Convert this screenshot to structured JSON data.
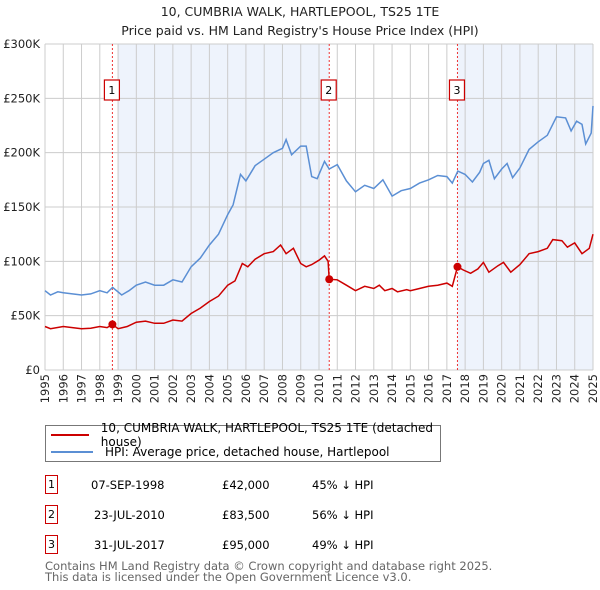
{
  "chart_data": {
    "type": "line",
    "title": "10, CUMBRIA WALK, HARTLEPOOL, TS25 1TE",
    "subtitle": "Price paid vs. HM Land Registry's House Price Index (HPI)",
    "xlim": [
      1995,
      2025
    ],
    "ylim": [
      0,
      300000
    ],
    "yticks": [
      {
        "v": 0,
        "label": "£0"
      },
      {
        "v": 50000,
        "label": "£50K"
      },
      {
        "v": 100000,
        "label": "£100K"
      },
      {
        "v": 150000,
        "label": "£150K"
      },
      {
        "v": 200000,
        "label": "£200K"
      },
      {
        "v": 250000,
        "label": "£250K"
      },
      {
        "v": 300000,
        "label": "£300K"
      }
    ],
    "xticks": [
      "1995",
      "1996",
      "1997",
      "1998",
      "1999",
      "2000",
      "2001",
      "2002",
      "2003",
      "2004",
      "2005",
      "2006",
      "2007",
      "2008",
      "2009",
      "2010",
      "2011",
      "2012",
      "2013",
      "2014",
      "2015",
      "2016",
      "2017",
      "2018",
      "2019",
      "2020",
      "2021",
      "2022",
      "2023",
      "2024",
      "2025"
    ],
    "grid": true,
    "colors": {
      "property": "#cc0000",
      "hpi": "#5b8fd4",
      "shade": "#eef3fc"
    },
    "series": [
      {
        "name": "10, CUMBRIA WALK, HARTLEPOOL, TS25 1TE (detached house)",
        "key": "property",
        "points": [
          [
            1995,
            40
          ],
          [
            1995.3,
            38
          ],
          [
            1996,
            40
          ],
          [
            1996.5,
            39
          ],
          [
            1997,
            38
          ],
          [
            1997.5,
            38.5
          ],
          [
            1998,
            40
          ],
          [
            1998.4,
            39
          ],
          [
            1998.69,
            42
          ],
          [
            1999,
            38
          ],
          [
            1999.5,
            40
          ],
          [
            2000,
            44
          ],
          [
            2000.5,
            45
          ],
          [
            2001,
            43
          ],
          [
            2001.5,
            43
          ],
          [
            2002,
            46
          ],
          [
            2002.5,
            45
          ],
          [
            2003,
            52
          ],
          [
            2003.5,
            57
          ],
          [
            2004,
            63
          ],
          [
            2004.5,
            68
          ],
          [
            2005,
            78
          ],
          [
            2005.4,
            82
          ],
          [
            2005.8,
            98
          ],
          [
            2006.1,
            95
          ],
          [
            2006.5,
            102
          ],
          [
            2007,
            107
          ],
          [
            2007.5,
            109
          ],
          [
            2007.9,
            115
          ],
          [
            2008.2,
            107
          ],
          [
            2008.6,
            112
          ],
          [
            2009,
            98
          ],
          [
            2009.3,
            95
          ],
          [
            2009.6,
            97
          ],
          [
            2010,
            101
          ],
          [
            2010.3,
            105
          ],
          [
            2010.5,
            100
          ],
          [
            2010.56,
            83.5
          ],
          [
            2011,
            83
          ],
          [
            2011.5,
            78
          ],
          [
            2012,
            73
          ],
          [
            2012.5,
            77
          ],
          [
            2013,
            75
          ],
          [
            2013.3,
            78
          ],
          [
            2013.6,
            73
          ],
          [
            2014,
            75
          ],
          [
            2014.3,
            72
          ],
          [
            2014.8,
            74
          ],
          [
            2015,
            73
          ],
          [
            2015.5,
            75
          ],
          [
            2016,
            77
          ],
          [
            2016.5,
            78
          ],
          [
            2017,
            80
          ],
          [
            2017.3,
            77
          ],
          [
            2017.58,
            95
          ],
          [
            2017.9,
            92
          ],
          [
            2018.3,
            89
          ],
          [
            2018.7,
            93
          ],
          [
            2019,
            99
          ],
          [
            2019.3,
            90
          ],
          [
            2019.8,
            96
          ],
          [
            2020.1,
            99
          ],
          [
            2020.5,
            90
          ],
          [
            2021,
            97
          ],
          [
            2021.5,
            107
          ],
          [
            2022,
            109
          ],
          [
            2022.5,
            112
          ],
          [
            2022.8,
            120
          ],
          [
            2023.3,
            119
          ],
          [
            2023.6,
            113
          ],
          [
            2024,
            117
          ],
          [
            2024.4,
            107
          ],
          [
            2024.8,
            112
          ],
          [
            2025,
            125
          ]
        ]
      },
      {
        "name": "HPI: Average price, detached house, Hartlepool",
        "key": "hpi",
        "points": [
          [
            1995,
            73
          ],
          [
            1995.3,
            69
          ],
          [
            1995.7,
            72
          ],
          [
            1996,
            71
          ],
          [
            1996.5,
            70
          ],
          [
            1997,
            69
          ],
          [
            1997.5,
            70
          ],
          [
            1998,
            73
          ],
          [
            1998.4,
            71
          ],
          [
            1998.7,
            76
          ],
          [
            1999.2,
            69
          ],
          [
            1999.6,
            73
          ],
          [
            2000,
            78
          ],
          [
            2000.5,
            81
          ],
          [
            2001,
            78
          ],
          [
            2001.5,
            78
          ],
          [
            2002,
            83
          ],
          [
            2002.5,
            81
          ],
          [
            2003,
            95
          ],
          [
            2003.5,
            103
          ],
          [
            2004,
            115
          ],
          [
            2004.5,
            125
          ],
          [
            2005,
            143
          ],
          [
            2005.3,
            152
          ],
          [
            2005.7,
            180
          ],
          [
            2006,
            174
          ],
          [
            2006.5,
            188
          ],
          [
            2007,
            194
          ],
          [
            2007.5,
            200
          ],
          [
            2008,
            204
          ],
          [
            2008.2,
            212
          ],
          [
            2008.5,
            198
          ],
          [
            2009,
            206
          ],
          [
            2009.3,
            206
          ],
          [
            2009.6,
            178
          ],
          [
            2009.9,
            176
          ],
          [
            2010.3,
            192
          ],
          [
            2010.56,
            185
          ],
          [
            2011,
            189
          ],
          [
            2011.5,
            174
          ],
          [
            2012,
            164
          ],
          [
            2012.5,
            170
          ],
          [
            2013,
            167
          ],
          [
            2013.5,
            175
          ],
          [
            2014,
            160
          ],
          [
            2014.5,
            165
          ],
          [
            2015,
            167
          ],
          [
            2015.5,
            172
          ],
          [
            2016,
            175
          ],
          [
            2016.5,
            179
          ],
          [
            2017,
            178
          ],
          [
            2017.3,
            172
          ],
          [
            2017.6,
            183
          ],
          [
            2018,
            180
          ],
          [
            2018.4,
            173
          ],
          [
            2018.8,
            182
          ],
          [
            2019,
            190
          ],
          [
            2019.3,
            193
          ],
          [
            2019.6,
            176
          ],
          [
            2020,
            185
          ],
          [
            2020.3,
            190
          ],
          [
            2020.6,
            177
          ],
          [
            2021,
            186
          ],
          [
            2021.5,
            203
          ],
          [
            2022,
            210
          ],
          [
            2022.5,
            216
          ],
          [
            2023,
            233
          ],
          [
            2023.5,
            232
          ],
          [
            2023.8,
            220
          ],
          [
            2024.1,
            229
          ],
          [
            2024.4,
            226
          ],
          [
            2024.6,
            208
          ],
          [
            2024.9,
            218
          ],
          [
            2025,
            243
          ]
        ]
      }
    ],
    "value_unit": "thousands GBP",
    "sales": [
      {
        "n": "1",
        "x": 1998.69,
        "price": 42,
        "date": "07-SEP-1998",
        "price_label": "£42,000",
        "hpi": "45% ↓ HPI"
      },
      {
        "n": "2",
        "x": 2010.56,
        "price": 83.5,
        "date": "23-JUL-2010",
        "price_label": "£83,500",
        "hpi": "56% ↓ HPI"
      },
      {
        "n": "3",
        "x": 2017.58,
        "price": 95,
        "date": "31-JUL-2017",
        "price_label": "£95,000",
        "hpi": "49% ↓ HPI"
      }
    ]
  },
  "legend": {
    "property": "10, CUMBRIA WALK, HARTLEPOOL, TS25 1TE (detached house)",
    "hpi": "HPI: Average price, detached house, Hartlepool"
  },
  "footer": {
    "line1": "Contains HM Land Registry data © Crown copyright and database right 2025.",
    "line2": "This data is licensed under the Open Government Licence v3.0."
  }
}
